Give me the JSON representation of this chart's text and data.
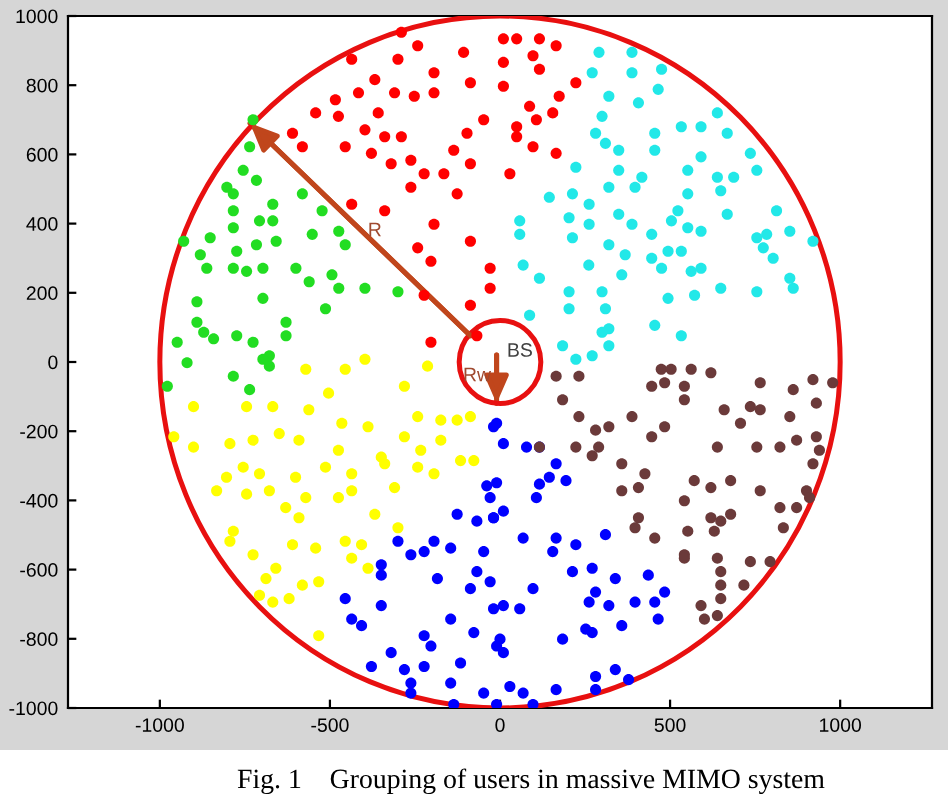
{
  "chart_data": {
    "type": "scatter",
    "marker": "circle",
    "grid": false,
    "legend": false,
    "xlim": [
      -1270,
      1270
    ],
    "ylim": [
      -1000,
      1000
    ],
    "xticks": [
      -1000,
      -500,
      0,
      500,
      1000
    ],
    "yticks": [
      -1000,
      -800,
      -600,
      -400,
      -200,
      0,
      200,
      400,
      600,
      800,
      1000
    ],
    "series": [
      {
        "color": "#ff0000",
        "x": [
          -436,
          -300,
          -368,
          -416,
          -484,
          -542,
          -475,
          -358,
          -310,
          -252,
          -194,
          -194,
          -242,
          -290,
          -107,
          -87,
          -48,
          -97,
          -610,
          -581,
          -455,
          -397,
          -339,
          -290,
          -378,
          -320,
          -262,
          -223,
          -165,
          -87,
          -126,
          -262,
          -339,
          -436,
          -194,
          -242,
          -203,
          -87,
          -29,
          -29,
          -87,
          -223,
          -203,
          -68,
          -136,
          10,
          49,
          116,
          165,
          97,
          10,
          116,
          10,
          223,
          174,
          87,
          155,
          107,
          49,
          49,
          97,
          165,
          29
        ],
        "values": [
          875,
          875,
          816,
          778,
          758,
          720,
          710,
          720,
          778,
          768,
          778,
          836,
          914,
          953,
          895,
          807,
          700,
          661,
          661,
          622,
          622,
          671,
          651,
          651,
          603,
          573,
          583,
          544,
          544,
          573,
          486,
          505,
          437,
          456,
          398,
          330,
          291,
          349,
          271,
          213,
          164,
          193,
          57,
          76,
          612,
          934,
          934,
          934,
          914,
          885,
          866,
          846,
          797,
          807,
          768,
          739,
          720,
          700,
          680,
          651,
          622,
          603,
          544
        ]
      },
      {
        "color": "#22e8e8",
        "x": [
          291,
          388,
          271,
          388,
          475,
          320,
          407,
          465,
          300,
          281,
          310,
          455,
          533,
          591,
          639,
          668,
          736,
          591,
          552,
          455,
          349,
          223,
          349,
          417,
          320,
          213,
          145,
          262,
          203,
          349,
          397,
          523,
          552,
          639,
          687,
          755,
          649,
          668,
          813,
          504,
          552,
          591,
          446,
          388,
          320,
          213,
          58,
          58,
          262,
          755,
          784,
          852,
          920,
          774,
          803,
          494,
          533,
          446,
          368,
          261,
          68,
          116,
          203,
          300,
          358,
          475,
          562,
          591,
          649,
          755,
          862,
          852,
          494,
          572,
          310,
          203,
          87,
          320,
          300,
          455,
          533,
          184,
          223,
          271,
          320
        ],
        "values": [
          895,
          895,
          836,
          836,
          846,
          768,
          749,
          788,
          710,
          661,
          632,
          661,
          680,
          680,
          720,
          661,
          603,
          593,
          554,
          612,
          612,
          563,
          554,
          534,
          505,
          486,
          476,
          456,
          417,
          427,
          505,
          437,
          486,
          534,
          534,
          554,
          495,
          427,
          437,
          408,
          388,
          378,
          369,
          398,
          339,
          359,
          408,
          369,
          398,
          359,
          369,
          378,
          349,
          330,
          300,
          320,
          320,
          300,
          310,
          280,
          280,
          242,
          203,
          203,
          252,
          271,
          262,
          271,
          213,
          203,
          213,
          242,
          184,
          193,
          154,
          154,
          135,
          96,
          86,
          106,
          76,
          47,
          8,
          18,
          47
        ]
      },
      {
        "color": "#22dd22",
        "x": [
          -726,
          -736,
          -755,
          -716,
          -803,
          -784,
          -784,
          -668,
          -707,
          -668,
          -784,
          -852,
          -930,
          -881,
          -774,
          -716,
          -658,
          -581,
          -523,
          -474,
          -455,
          -552,
          -862,
          -784,
          -745,
          -697,
          -600,
          -561,
          -494,
          -474,
          -397,
          -300,
          -891,
          -697,
          -513,
          -891,
          -871,
          -949,
          -842,
          -774,
          -726,
          -629,
          -629,
          -678,
          -920,
          -784,
          -978,
          -736,
          -678,
          -697
        ],
        "values": [
          700,
          622,
          554,
          525,
          505,
          486,
          437,
          456,
          408,
          408,
          388,
          359,
          349,
          310,
          320,
          339,
          349,
          486,
          437,
          378,
          339,
          369,
          271,
          271,
          262,
          271,
          271,
          232,
          252,
          213,
          213,
          203,
          174,
          184,
          154,
          115,
          86,
          57,
          67,
          76,
          57,
          115,
          76,
          18,
          -2,
          -41,
          -70,
          -80,
          -12,
          8
        ]
      },
      {
        "color": "#ffff00",
        "x": [
          -571,
          -455,
          -397,
          -504,
          -281,
          -213,
          -901,
          -745,
          -668,
          -562,
          -465,
          -388,
          -242,
          -174,
          -126,
          -87,
          -959,
          -901,
          -794,
          -726,
          -649,
          -591,
          -475,
          -349,
          -281,
          -233,
          -174,
          -116,
          -77,
          -755,
          -804,
          -707,
          -601,
          -513,
          -436,
          -339,
          -242,
          -194,
          -833,
          -745,
          -678,
          -571,
          -475,
          -436,
          -310,
          -630,
          -591,
          -368,
          -784,
          -794,
          -610,
          -542,
          -455,
          -407,
          -300,
          -726,
          -659,
          -688,
          -581,
          -533,
          -436,
          -388,
          -707,
          -668,
          -620,
          -533
        ],
        "values": [
          -21,
          -21,
          8,
          -90,
          -70,
          -12,
          -129,
          -129,
          -129,
          -138,
          -177,
          -187,
          -158,
          -168,
          -168,
          -158,
          -216,
          -246,
          -236,
          -226,
          -207,
          -226,
          -255,
          -275,
          -216,
          -255,
          -226,
          -285,
          -285,
          -304,
          -333,
          -323,
          -333,
          -304,
          -323,
          -294,
          -304,
          -323,
          -372,
          -382,
          -372,
          -392,
          -392,
          -372,
          -363,
          -421,
          -450,
          -440,
          -489,
          -518,
          -528,
          -538,
          -518,
          -528,
          -479,
          -557,
          -596,
          -626,
          -645,
          -635,
          -567,
          -596,
          -674,
          -694,
          -684,
          -791
        ]
      },
      {
        "color": "#0000ff",
        "x": [
          -19,
          -39,
          -10,
          -29,
          -126,
          -68,
          -19,
          -300,
          -262,
          -223,
          -194,
          -145,
          -48,
          -349,
          -349,
          -184,
          -87,
          -68,
          -29,
          -455,
          -349,
          -19,
          -436,
          -407,
          -145,
          -77,
          -223,
          -203,
          -320,
          -378,
          -281,
          -223,
          -116,
          -145,
          -262,
          -262,
          -136,
          -48,
          -10,
          -10,
          10,
          78,
          116,
          165,
          145,
          194,
          116,
          107,
          10,
          -19,
          68,
          165,
          223,
          310,
          155,
          213,
          271,
          339,
          436,
          484,
          281,
          262,
          320,
          397,
          455,
          97,
          10,
          58,
          358,
          465,
          252,
          0,
          10,
          184,
          271,
          281,
          339,
          378,
          29,
          68,
          165,
          281,
          97,
          -10
        ],
        "values": [
          -187,
          -358,
          -349,
          -392,
          -440,
          -460,
          -450,
          -518,
          -557,
          -548,
          -518,
          -538,
          -548,
          -586,
          -616,
          -626,
          -655,
          -606,
          -635,
          -684,
          -704,
          -713,
          -743,
          -762,
          -743,
          -782,
          -791,
          -821,
          -840,
          -880,
          -889,
          -880,
          -870,
          -928,
          -928,
          -957,
          -990,
          -957,
          -821,
          -177,
          -236,
          -246,
          -246,
          -294,
          -333,
          -343,
          -353,
          -392,
          -431,
          -450,
          -509,
          -509,
          -528,
          -499,
          -548,
          -606,
          -596,
          -626,
          -616,
          -665,
          -665,
          -694,
          -704,
          -694,
          -694,
          -655,
          -704,
          -713,
          -762,
          -743,
          -772,
          -801,
          -840,
          -801,
          -782,
          -909,
          -889,
          -918,
          -938,
          -957,
          -947,
          -947,
          -990,
          -990
        ]
      },
      {
        "color": "#6b3a3a",
        "x": [
          165,
          232,
          474,
          503,
          562,
          620,
          484,
          446,
          542,
          542,
          765,
          862,
          920,
          930,
          978,
          184,
          232,
          281,
          320,
          388,
          484,
          446,
          659,
          736,
          765,
          707,
          852,
          930,
          116,
          223,
          271,
          290,
          358,
          426,
          639,
          755,
          823,
          872,
          939,
          358,
          407,
          571,
          620,
          678,
          765,
          920,
          901,
          407,
          397,
          455,
          542,
          552,
          620,
          649,
          630,
          678,
          823,
          872,
          833,
          910,
          542,
          542,
          639,
          736,
          794,
          649,
          717,
          649,
          591,
          649,
          639,
          601
        ],
        "values": [
          -41,
          -41,
          -21,
          -21,
          -21,
          -31,
          -60,
          -70,
          -70,
          -109,
          -60,
          -80,
          -51,
          -119,
          -60,
          -109,
          -158,
          -197,
          -187,
          -158,
          -187,
          -216,
          -138,
          -129,
          -138,
          -177,
          -158,
          -216,
          -246,
          -246,
          -271,
          -246,
          -294,
          -323,
          -246,
          -246,
          -246,
          -226,
          -255,
          -372,
          -363,
          -343,
          -363,
          -343,
          -372,
          -294,
          -372,
          -450,
          -479,
          -509,
          -401,
          -489,
          -450,
          -460,
          -489,
          -440,
          -421,
          -421,
          -479,
          -392,
          -557,
          -567,
          -567,
          -577,
          -577,
          -606,
          -645,
          -645,
          -704,
          -684,
          -733,
          -743
        ]
      },
      {
        "type": "line",
        "marker": "none",
        "color": "#c0461c",
        "x": [
          -87,
          -735
        ],
        "values": [
          76,
          690
        ]
      },
      {
        "type": "line",
        "marker": "none",
        "color": "#c0461c",
        "x": [
          -10,
          -10
        ],
        "values": [
          20,
          -120
        ]
      }
    ],
    "annotations": [
      {
        "text": "R",
        "x": -368,
        "y": 378
      },
      "BS",
      {
        "text": "Rw",
        "x": -10,
        "y": -41
      },
      "Fig. 1    Grouping of users in massive MIMO system"
    ]
  }
}
